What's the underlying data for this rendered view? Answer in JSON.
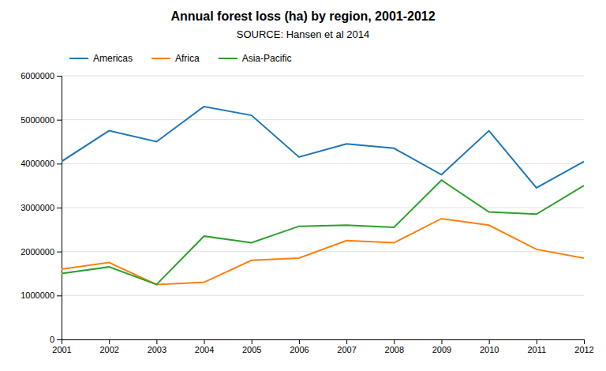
{
  "chart_data": {
    "type": "line",
    "title": "Annual forest loss (ha) by region, 2001-2012",
    "subtitle": "SOURCE: Hansen et al 2014",
    "x": [
      2001,
      2002,
      2003,
      2004,
      2005,
      2006,
      2007,
      2008,
      2009,
      2010,
      2011,
      2012
    ],
    "series": [
      {
        "name": "Americas",
        "values": [
          4050000,
          4750000,
          4500000,
          5300000,
          5100000,
          4150000,
          4450000,
          4350000,
          3750000,
          4750000,
          3450000,
          4050000
        ]
      },
      {
        "name": "Africa",
        "values": [
          1600000,
          1750000,
          1250000,
          1300000,
          1800000,
          1850000,
          2250000,
          2200000,
          2750000,
          2600000,
          2050000,
          1850000
        ]
      },
      {
        "name": "Asia-Pacific",
        "values": [
          1500000,
          1650000,
          1250000,
          2350000,
          2200000,
          2575000,
          2600000,
          2550000,
          3625000,
          2900000,
          2850000,
          3500000
        ]
      }
    ],
    "xlim": [
      2001,
      2012
    ],
    "xticks": [
      2001,
      2002,
      2003,
      2004,
      2005,
      2006,
      2007,
      2008,
      2009,
      2010,
      2011,
      2012
    ],
    "ylim": [
      0,
      6000000
    ],
    "yticks": [
      0,
      1000000,
      2000000,
      3000000,
      4000000,
      5000000,
      6000000
    ],
    "grid": true,
    "legend": "upper left"
  }
}
